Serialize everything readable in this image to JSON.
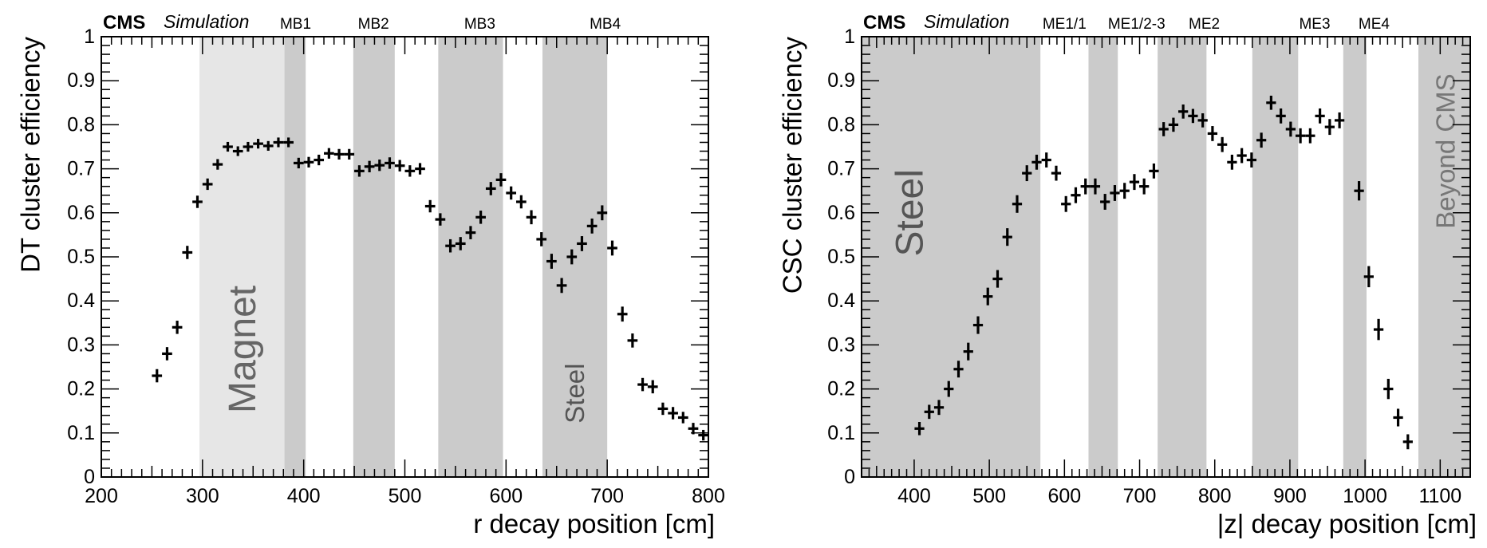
{
  "chart_data": [
    {
      "type": "scatter",
      "experiment_label": "CMS",
      "status_label": "Simulation",
      "ylabel": "DT cluster efficiency",
      "xlabel": "r decay position [cm]",
      "xlim": [
        200,
        800
      ],
      "ylim": [
        0,
        1
      ],
      "x_ticks": [
        200,
        300,
        400,
        500,
        600,
        700,
        800
      ],
      "y_ticks": [
        0,
        0.1,
        0.2,
        0.3,
        0.4,
        0.5,
        0.6,
        0.7,
        0.8,
        0.9,
        1
      ],
      "x_tick_labels": [
        "200",
        "300",
        "400",
        "500",
        "600",
        "700",
        "800"
      ],
      "y_tick_labels": [
        "0",
        "0.1",
        "0.2",
        "0.3",
        "0.4",
        "0.5",
        "0.6",
        "0.7",
        "0.8",
        "0.9",
        "1"
      ],
      "grid": false,
      "regions": [
        {
          "x0": 297,
          "x1": 381,
          "color": "#e6e6e6"
        },
        {
          "x0": 381,
          "x1": 402,
          "color": "#cbcbcb"
        },
        {
          "x0": 449,
          "x1": 490,
          "color": "#cbcbcb"
        },
        {
          "x0": 533,
          "x1": 597,
          "color": "#cbcbcb"
        },
        {
          "x0": 636,
          "x1": 700,
          "color": "#cbcbcb"
        }
      ],
      "station_labels": [
        {
          "text": "MB1",
          "x": 392
        },
        {
          "text": "MB2",
          "x": 469
        },
        {
          "text": "MB3",
          "x": 574
        },
        {
          "text": "MB4",
          "x": 698
        }
      ],
      "annotations": [
        {
          "text": "Magnet",
          "x": 340,
          "y": 0.29,
          "size": "big",
          "color": "#666666"
        },
        {
          "text": "Steel",
          "x": 668,
          "y": 0.19,
          "size": "mid",
          "color": "#555555"
        }
      ],
      "x_half_width": 5,
      "series": [
        {
          "marker_color": "#000000",
          "points": [
            {
              "x": 255,
              "y": 0.23,
              "err": 0.015
            },
            {
              "x": 265,
              "y": 0.28,
              "err": 0.015
            },
            {
              "x": 275,
              "y": 0.34,
              "err": 0.015
            },
            {
              "x": 285,
              "y": 0.51,
              "err": 0.015
            },
            {
              "x": 295,
              "y": 0.625,
              "err": 0.014
            },
            {
              "x": 305,
              "y": 0.665,
              "err": 0.013
            },
            {
              "x": 315,
              "y": 0.71,
              "err": 0.012
            },
            {
              "x": 325,
              "y": 0.75,
              "err": 0.011
            },
            {
              "x": 335,
              "y": 0.74,
              "err": 0.011
            },
            {
              "x": 345,
              "y": 0.75,
              "err": 0.011
            },
            {
              "x": 355,
              "y": 0.757,
              "err": 0.011
            },
            {
              "x": 365,
              "y": 0.752,
              "err": 0.011
            },
            {
              "x": 375,
              "y": 0.76,
              "err": 0.011
            },
            {
              "x": 385,
              "y": 0.76,
              "err": 0.011
            },
            {
              "x": 395,
              "y": 0.713,
              "err": 0.012
            },
            {
              "x": 405,
              "y": 0.715,
              "err": 0.012
            },
            {
              "x": 415,
              "y": 0.72,
              "err": 0.012
            },
            {
              "x": 425,
              "y": 0.735,
              "err": 0.012
            },
            {
              "x": 435,
              "y": 0.733,
              "err": 0.012
            },
            {
              "x": 445,
              "y": 0.733,
              "err": 0.012
            },
            {
              "x": 455,
              "y": 0.695,
              "err": 0.013
            },
            {
              "x": 465,
              "y": 0.705,
              "err": 0.013
            },
            {
              "x": 475,
              "y": 0.708,
              "err": 0.013
            },
            {
              "x": 485,
              "y": 0.713,
              "err": 0.013
            },
            {
              "x": 495,
              "y": 0.707,
              "err": 0.013
            },
            {
              "x": 505,
              "y": 0.695,
              "err": 0.013
            },
            {
              "x": 515,
              "y": 0.7,
              "err": 0.013
            },
            {
              "x": 525,
              "y": 0.615,
              "err": 0.014
            },
            {
              "x": 535,
              "y": 0.585,
              "err": 0.014
            },
            {
              "x": 545,
              "y": 0.525,
              "err": 0.015
            },
            {
              "x": 555,
              "y": 0.53,
              "err": 0.015
            },
            {
              "x": 565,
              "y": 0.555,
              "err": 0.015
            },
            {
              "x": 575,
              "y": 0.59,
              "err": 0.015
            },
            {
              "x": 585,
              "y": 0.655,
              "err": 0.015
            },
            {
              "x": 595,
              "y": 0.675,
              "err": 0.015
            },
            {
              "x": 605,
              "y": 0.645,
              "err": 0.015
            },
            {
              "x": 615,
              "y": 0.625,
              "err": 0.015
            },
            {
              "x": 625,
              "y": 0.59,
              "err": 0.016
            },
            {
              "x": 635,
              "y": 0.54,
              "err": 0.016
            },
            {
              "x": 645,
              "y": 0.49,
              "err": 0.017
            },
            {
              "x": 655,
              "y": 0.435,
              "err": 0.017
            },
            {
              "x": 665,
              "y": 0.5,
              "err": 0.017
            },
            {
              "x": 675,
              "y": 0.53,
              "err": 0.017
            },
            {
              "x": 685,
              "y": 0.57,
              "err": 0.017
            },
            {
              "x": 695,
              "y": 0.6,
              "err": 0.017
            },
            {
              "x": 705,
              "y": 0.52,
              "err": 0.017
            },
            {
              "x": 715,
              "y": 0.37,
              "err": 0.017
            },
            {
              "x": 725,
              "y": 0.31,
              "err": 0.016
            },
            {
              "x": 735,
              "y": 0.21,
              "err": 0.015
            },
            {
              "x": 745,
              "y": 0.205,
              "err": 0.015
            },
            {
              "x": 755,
              "y": 0.155,
              "err": 0.014
            },
            {
              "x": 765,
              "y": 0.145,
              "err": 0.014
            },
            {
              "x": 775,
              "y": 0.135,
              "err": 0.013
            },
            {
              "x": 785,
              "y": 0.11,
              "err": 0.013
            },
            {
              "x": 795,
              "y": 0.095,
              "err": 0.012
            }
          ]
        }
      ]
    },
    {
      "type": "scatter",
      "experiment_label": "CMS",
      "status_label": "Simulation",
      "ylabel": "CSC cluster efficiency",
      "xlabel": "|z| decay position [cm]",
      "xlim": [
        330,
        1140
      ],
      "ylim": [
        0,
        1
      ],
      "x_ticks": [
        400,
        500,
        600,
        700,
        800,
        900,
        1000,
        1100
      ],
      "y_ticks": [
        0,
        0.1,
        0.2,
        0.3,
        0.4,
        0.5,
        0.6,
        0.7,
        0.8,
        0.9,
        1
      ],
      "x_tick_labels": [
        "400",
        "500",
        "600",
        "700",
        "800",
        "900",
        "1000",
        "1100"
      ],
      "y_tick_labels": [
        "0",
        "0.1",
        "0.2",
        "0.3",
        "0.4",
        "0.5",
        "0.6",
        "0.7",
        "0.8",
        "0.9",
        "1"
      ],
      "grid": false,
      "regions": [
        {
          "x0": 330,
          "x1": 568,
          "color": "#cbcbcb"
        },
        {
          "x0": 632,
          "x1": 671,
          "color": "#cbcbcb"
        },
        {
          "x0": 724,
          "x1": 789,
          "color": "#cbcbcb"
        },
        {
          "x0": 850,
          "x1": 911,
          "color": "#cbcbcb"
        },
        {
          "x0": 971,
          "x1": 1002,
          "color": "#cbcbcb"
        },
        {
          "x0": 1071,
          "x1": 1140,
          "color": "#cbcbcb"
        }
      ],
      "station_labels": [
        {
          "text": "ME1/1",
          "x": 600
        },
        {
          "text": "ME1/2-3",
          "x": 696
        },
        {
          "text": "ME2",
          "x": 786
        },
        {
          "text": "ME3",
          "x": 933
        },
        {
          "text": "ME4",
          "x": 1012
        }
      ],
      "annotations": [
        {
          "text": "Steel",
          "x": 395,
          "y": 0.6,
          "size": "big",
          "color": "#555555"
        },
        {
          "text": "Beyond CMS",
          "x": 1107,
          "y": 0.74,
          "size": "mid",
          "color": "#777777"
        }
      ],
      "x_half_width": 6.5,
      "series": [
        {
          "marker_color": "#000000",
          "points": [
            {
              "x": 407,
              "y": 0.11,
              "err": 0.015
            },
            {
              "x": 420,
              "y": 0.148,
              "err": 0.016
            },
            {
              "x": 433,
              "y": 0.158,
              "err": 0.017
            },
            {
              "x": 446,
              "y": 0.2,
              "err": 0.018
            },
            {
              "x": 459,
              "y": 0.245,
              "err": 0.019
            },
            {
              "x": 472,
              "y": 0.285,
              "err": 0.02
            },
            {
              "x": 485,
              "y": 0.345,
              "err": 0.02
            },
            {
              "x": 498,
              "y": 0.41,
              "err": 0.02
            },
            {
              "x": 511,
              "y": 0.45,
              "err": 0.02
            },
            {
              "x": 524,
              "y": 0.545,
              "err": 0.02
            },
            {
              "x": 537,
              "y": 0.62,
              "err": 0.02
            },
            {
              "x": 550,
              "y": 0.69,
              "err": 0.018
            },
            {
              "x": 563,
              "y": 0.715,
              "err": 0.017
            },
            {
              "x": 576,
              "y": 0.72,
              "err": 0.017
            },
            {
              "x": 589,
              "y": 0.69,
              "err": 0.017
            },
            {
              "x": 602,
              "y": 0.62,
              "err": 0.018
            },
            {
              "x": 615,
              "y": 0.64,
              "err": 0.018
            },
            {
              "x": 628,
              "y": 0.66,
              "err": 0.018
            },
            {
              "x": 641,
              "y": 0.66,
              "err": 0.018
            },
            {
              "x": 654,
              "y": 0.625,
              "err": 0.018
            },
            {
              "x": 667,
              "y": 0.645,
              "err": 0.018
            },
            {
              "x": 680,
              "y": 0.65,
              "err": 0.018
            },
            {
              "x": 693,
              "y": 0.67,
              "err": 0.018
            },
            {
              "x": 706,
              "y": 0.66,
              "err": 0.018
            },
            {
              "x": 719,
              "y": 0.695,
              "err": 0.017
            },
            {
              "x": 732,
              "y": 0.79,
              "err": 0.016
            },
            {
              "x": 745,
              "y": 0.8,
              "err": 0.016
            },
            {
              "x": 758,
              "y": 0.83,
              "err": 0.016
            },
            {
              "x": 771,
              "y": 0.82,
              "err": 0.016
            },
            {
              "x": 784,
              "y": 0.81,
              "err": 0.016
            },
            {
              "x": 797,
              "y": 0.78,
              "err": 0.017
            },
            {
              "x": 810,
              "y": 0.755,
              "err": 0.017
            },
            {
              "x": 823,
              "y": 0.715,
              "err": 0.017
            },
            {
              "x": 836,
              "y": 0.73,
              "err": 0.017
            },
            {
              "x": 849,
              "y": 0.72,
              "err": 0.017
            },
            {
              "x": 862,
              "y": 0.765,
              "err": 0.017
            },
            {
              "x": 875,
              "y": 0.85,
              "err": 0.016
            },
            {
              "x": 888,
              "y": 0.82,
              "err": 0.017
            },
            {
              "x": 901,
              "y": 0.79,
              "err": 0.017
            },
            {
              "x": 914,
              "y": 0.775,
              "err": 0.017
            },
            {
              "x": 927,
              "y": 0.775,
              "err": 0.017
            },
            {
              "x": 940,
              "y": 0.82,
              "err": 0.017
            },
            {
              "x": 953,
              "y": 0.795,
              "err": 0.018
            },
            {
              "x": 966,
              "y": 0.81,
              "err": 0.018
            },
            {
              "x": 992,
              "y": 0.65,
              "err": 0.022
            },
            {
              "x": 1005,
              "y": 0.455,
              "err": 0.024
            },
            {
              "x": 1018,
              "y": 0.335,
              "err": 0.024
            },
            {
              "x": 1031,
              "y": 0.2,
              "err": 0.023
            },
            {
              "x": 1044,
              "y": 0.135,
              "err": 0.02
            },
            {
              "x": 1057,
              "y": 0.08,
              "err": 0.017
            }
          ]
        }
      ]
    }
  ]
}
